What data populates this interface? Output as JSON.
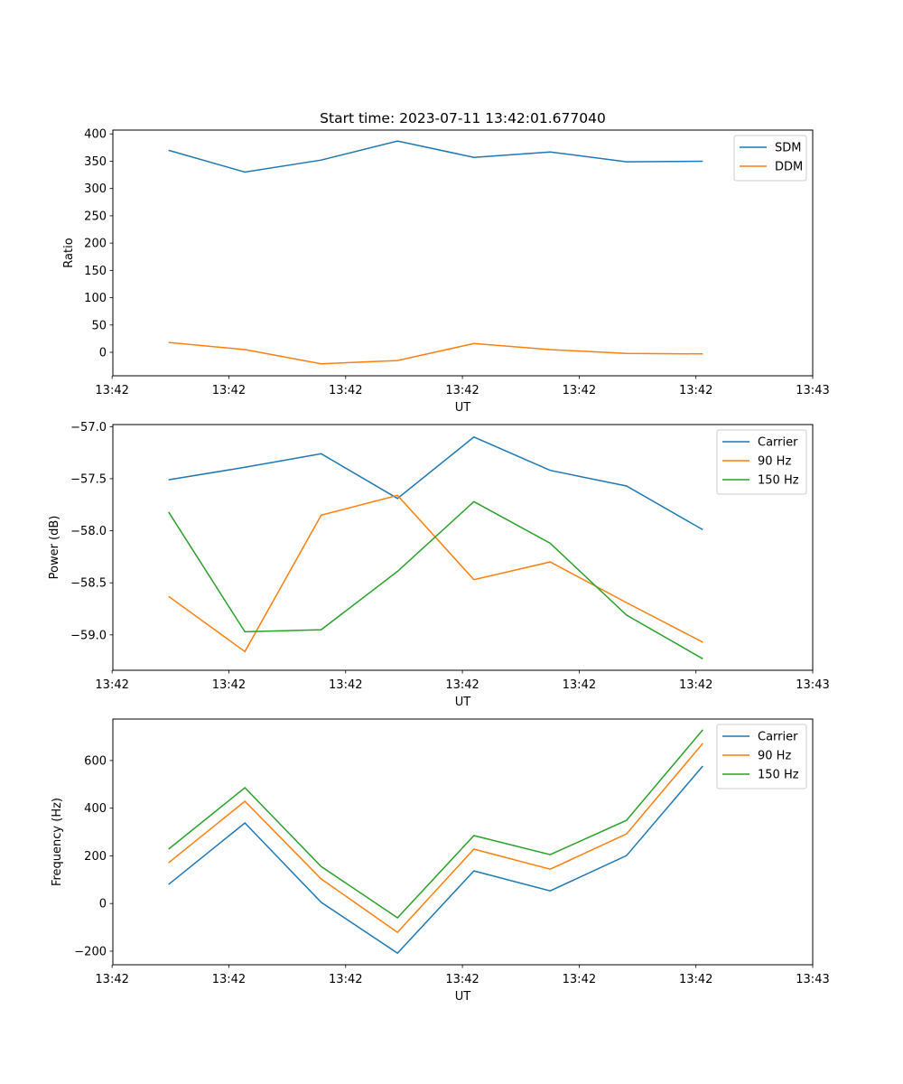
{
  "chart_data": [
    {
      "type": "line",
      "title": "Start time: 2023-07-11 13:42:01.677040",
      "xlabel": "UT",
      "ylabel": "Ratio",
      "ylim": [
        -43,
        407
      ],
      "yticks": [
        0,
        50,
        100,
        150,
        200,
        250,
        300,
        350,
        400
      ],
      "xlim": [
        -0.73,
        8.44
      ],
      "x": [
        0,
        1,
        2,
        3,
        4,
        5,
        6,
        7
      ],
      "xticks": [
        -0.74,
        0.79,
        2.32,
        3.85,
        5.38,
        6.91,
        8.44
      ],
      "xtick_labels": [
        "13:42",
        "13:42",
        "13:42",
        "13:42",
        "13:42",
        "13:42",
        "13:43"
      ],
      "legend": "top-right",
      "grid": false,
      "series": [
        {
          "name": "SDM",
          "color": "#1f77b4",
          "values": [
            370,
            330,
            352,
            387,
            357,
            367,
            349,
            350
          ]
        },
        {
          "name": "DDM",
          "color": "#ff7f0e",
          "values": [
            18,
            5,
            -21,
            -15,
            16,
            5,
            -2,
            -3
          ]
        }
      ]
    },
    {
      "type": "line",
      "title": "",
      "xlabel": "UT",
      "ylabel": "Power (dB)",
      "ylim": [
        -59.34,
        -56.98
      ],
      "yticks": [
        -57.0,
        -57.5,
        -58.0,
        -58.5,
        -59.0
      ],
      "ytick_labels": [
        "−57.0",
        "−57.5",
        "−58.0",
        "−58.5",
        "−59.0"
      ],
      "xlim": [
        -0.73,
        8.44
      ],
      "x": [
        0,
        1,
        2,
        3,
        4,
        5,
        6,
        7
      ],
      "xticks": [
        -0.74,
        0.79,
        2.32,
        3.85,
        5.38,
        6.91,
        8.44
      ],
      "xtick_labels": [
        "13:42",
        "13:42",
        "13:42",
        "13:42",
        "13:42",
        "13:42",
        "13:43"
      ],
      "legend": "top-right",
      "grid": false,
      "series": [
        {
          "name": "Carrier",
          "color": "#1f77b4",
          "values": [
            -57.51,
            -57.39,
            -57.26,
            -57.69,
            -57.1,
            -57.42,
            -57.57,
            -57.99
          ]
        },
        {
          "name": "90 Hz",
          "color": "#ff7f0e",
          "values": [
            -58.63,
            -59.16,
            -57.85,
            -57.66,
            -58.47,
            -58.3,
            -58.69,
            -59.07
          ]
        },
        {
          "name": "150 Hz",
          "color": "#2ca02c",
          "values": [
            -57.82,
            -58.97,
            -58.95,
            -58.39,
            -57.72,
            -58.12,
            -58.81,
            -59.23
          ]
        }
      ]
    },
    {
      "type": "line",
      "title": "",
      "xlabel": "UT",
      "ylabel": "Frequency (Hz)",
      "ylim": [
        -257,
        774
      ],
      "yticks": [
        -200,
        0,
        200,
        400,
        600
      ],
      "ytick_labels": [
        "−200",
        "0",
        "200",
        "400",
        "600"
      ],
      "xlim": [
        -0.73,
        8.44
      ],
      "x": [
        0,
        1,
        2,
        3,
        4,
        5,
        6,
        7
      ],
      "xticks": [
        -0.74,
        0.79,
        2.32,
        3.85,
        5.38,
        6.91,
        8.44
      ],
      "xtick_labels": [
        "13:42",
        "13:42",
        "13:42",
        "13:42",
        "13:42",
        "13:42",
        "13:43"
      ],
      "legend": "top-right",
      "grid": false,
      "series": [
        {
          "name": "Carrier",
          "color": "#1f77b4",
          "values": [
            80,
            338,
            5,
            -208,
            137,
            53,
            201,
            577
          ]
        },
        {
          "name": "90 Hz",
          "color": "#ff7f0e",
          "values": [
            171,
            429,
            103,
            -121,
            228,
            144,
            292,
            672
          ]
        },
        {
          "name": "150 Hz",
          "color": "#2ca02c",
          "values": [
            228,
            486,
            155,
            -60,
            285,
            205,
            349,
            729
          ]
        }
      ]
    }
  ]
}
